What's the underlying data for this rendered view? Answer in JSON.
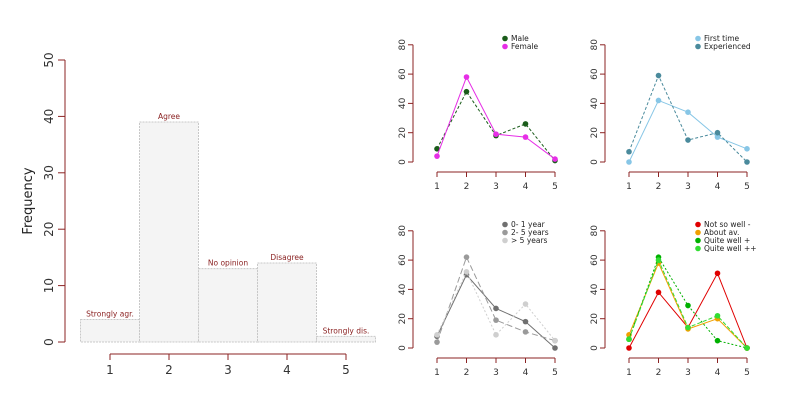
{
  "chart_data": [
    {
      "type": "bar",
      "ylabel": "Frequency",
      "ylim": [
        0,
        50
      ],
      "yticks": [
        0,
        10,
        20,
        30,
        40,
        50
      ],
      "categories": [
        "1",
        "2",
        "3",
        "4",
        "5"
      ],
      "values": [
        4,
        39,
        13,
        14,
        1
      ],
      "bar_labels": [
        "Strongly agr.",
        "Agree",
        "No opinion",
        "Disagree",
        "Strongly dis."
      ],
      "colors": {
        "bar_fill": "#f4f4f4",
        "bar_stroke": "#c8c8c8",
        "label": "#8b2323",
        "axis": "#8b2323"
      }
    },
    {
      "type": "line",
      "x": [
        1,
        2,
        3,
        4,
        5
      ],
      "ylim": [
        0,
        80
      ],
      "yticks": [
        0,
        20,
        40,
        60,
        80
      ],
      "legend_position": "top-right",
      "series": [
        {
          "name": "Male",
          "values": [
            9,
            48,
            18,
            26,
            1
          ],
          "color": "#1a5c1a",
          "dash": "3,2"
        },
        {
          "name": "Female",
          "values": [
            4,
            58,
            19,
            17,
            2
          ],
          "color": "#e62ee6",
          "dash": ""
        }
      ]
    },
    {
      "type": "line",
      "x": [
        1,
        2,
        3,
        4,
        5
      ],
      "ylim": [
        0,
        80
      ],
      "yticks": [
        0,
        20,
        40,
        60,
        80
      ],
      "legend_position": "top-right",
      "series": [
        {
          "name": "First time",
          "values": [
            0,
            42,
            34,
            17,
            9
          ],
          "color": "#87c6e6",
          "dash": ""
        },
        {
          "name": "Experienced",
          "values": [
            7,
            59,
            15,
            20,
            0
          ],
          "color": "#4a8a9c",
          "dash": "3,2"
        }
      ]
    },
    {
      "type": "line",
      "x": [
        1,
        2,
        3,
        4,
        5
      ],
      "ylim": [
        0,
        80
      ],
      "yticks": [
        0,
        20,
        40,
        60,
        80
      ],
      "legend_position": "top-right",
      "series": [
        {
          "name": "0- 1 year",
          "values": [
            8,
            50,
            27,
            18,
            0
          ],
          "color": "#707070",
          "dash": ""
        },
        {
          "name": "2- 5 years",
          "values": [
            4,
            62,
            19,
            11,
            5
          ],
          "color": "#9a9a9a",
          "dash": "6,3"
        },
        {
          "name": "> 5 years",
          "values": [
            9,
            52,
            9,
            30,
            5
          ],
          "color": "#cfcfcf",
          "dash": "2,2"
        }
      ]
    },
    {
      "type": "line",
      "x": [
        1,
        2,
        3,
        4,
        5
      ],
      "ylim": [
        0,
        80
      ],
      "yticks": [
        0,
        20,
        40,
        60,
        80
      ],
      "legend_position": "top-right",
      "series": [
        {
          "name": "Not so well -",
          "values": [
            0,
            38,
            14,
            51,
            0
          ],
          "color": "#e00000",
          "dash": ""
        },
        {
          "name": "About av.",
          "values": [
            9,
            58,
            13,
            20,
            0
          ],
          "color": "#f0a000",
          "dash": ""
        },
        {
          "name": "Quite well +",
          "values": [
            6,
            62,
            29,
            5,
            0
          ],
          "color": "#00b000",
          "dash": "2,2"
        },
        {
          "name": "Quite well ++",
          "values": [
            6,
            60,
            14,
            22,
            0
          ],
          "color": "#33dd33",
          "dash": "4,2"
        }
      ]
    }
  ]
}
